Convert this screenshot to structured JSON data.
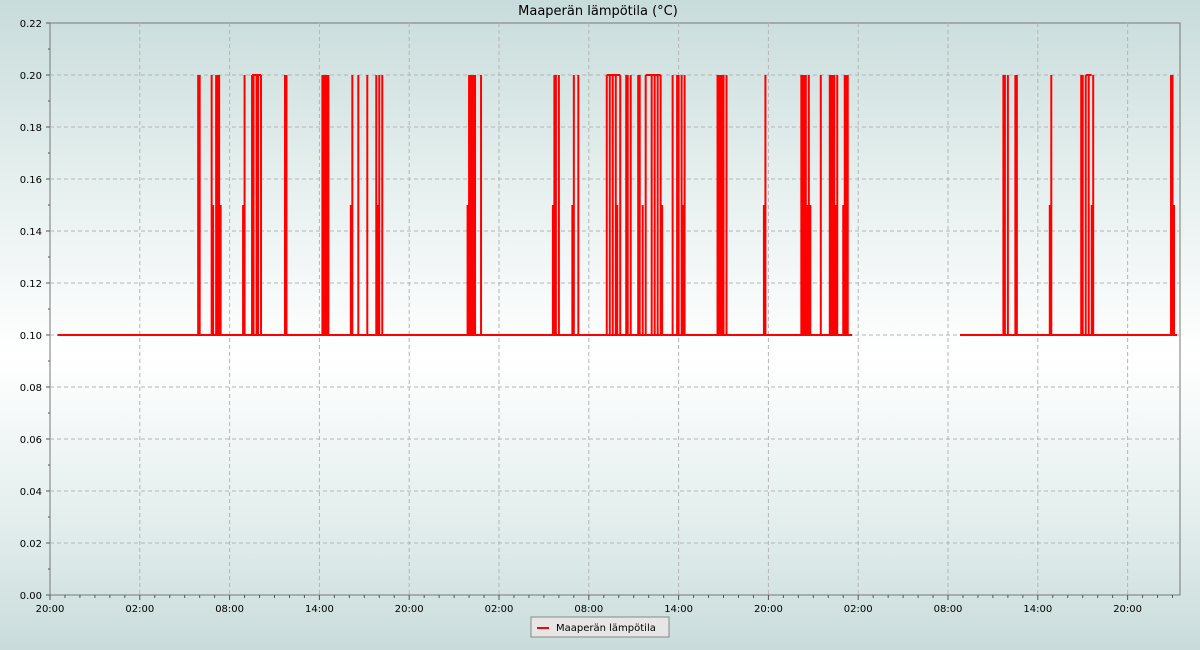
{
  "chart_data": {
    "type": "line",
    "title": "Maaperän lämpötila (°C)",
    "xlabel": "",
    "ylabel": "",
    "y_ticks": [
      "0.00",
      "0.02",
      "0.04",
      "0.06",
      "0.08",
      "0.10",
      "0.12",
      "0.14",
      "0.16",
      "0.18",
      "0.20",
      "0.22"
    ],
    "ylim": [
      0,
      0.22
    ],
    "x_ticks": [
      "20:00",
      "02:00",
      "08:00",
      "14:00",
      "20:00",
      "02:00",
      "08:00",
      "14:00",
      "20:00",
      "02:00",
      "08:00",
      "14:00",
      "20:00"
    ],
    "x_unit": "hours",
    "xlim": [
      0,
      75.5
    ],
    "grid": true,
    "legend_position": "bottom-center",
    "series": [
      {
        "name": "Maaperän lämpötila",
        "color": "#ff0000",
        "baseline": 0.1,
        "segments": [
          [
            0.5,
            53.6
          ],
          [
            60.8,
            75.3
          ]
        ],
        "spikes": [
          [
            9.9,
            0.2
          ],
          [
            10.0,
            0.2
          ],
          [
            10.8,
            0.2
          ],
          [
            10.9,
            0.15
          ],
          [
            11.1,
            0.2
          ],
          [
            11.2,
            0.2
          ],
          [
            11.3,
            0.2
          ],
          [
            11.4,
            0.15
          ],
          [
            12.9,
            0.15
          ],
          [
            13.0,
            0.2
          ],
          [
            13.5,
            0.2
          ],
          [
            13.6,
            0.2
          ],
          [
            13.8,
            0.2
          ],
          [
            13.9,
            0.2
          ],
          [
            14.1,
            0.2
          ],
          [
            15.7,
            0.2
          ],
          [
            15.8,
            0.2
          ],
          [
            18.2,
            0.2
          ],
          [
            18.3,
            0.2
          ],
          [
            18.4,
            0.2
          ],
          [
            18.5,
            0.2
          ],
          [
            18.6,
            0.2
          ],
          [
            20.1,
            0.15
          ],
          [
            20.2,
            0.2
          ],
          [
            20.6,
            0.2
          ],
          [
            21.2,
            0.2
          ],
          [
            21.8,
            0.2
          ],
          [
            21.9,
            0.15
          ],
          [
            22.0,
            0.2
          ],
          [
            22.2,
            0.2
          ],
          [
            27.9,
            0.15
          ],
          [
            28.0,
            0.2
          ],
          [
            28.1,
            0.2
          ],
          [
            28.2,
            0.2
          ],
          [
            28.3,
            0.2
          ],
          [
            28.4,
            0.2
          ],
          [
            28.8,
            0.2
          ],
          [
            33.6,
            0.15
          ],
          [
            33.7,
            0.2
          ],
          [
            33.8,
            0.2
          ],
          [
            34.0,
            0.2
          ],
          [
            34.9,
            0.15
          ],
          [
            35.0,
            0.2
          ],
          [
            35.3,
            0.2
          ],
          [
            37.2,
            0.2
          ],
          [
            37.4,
            0.2
          ],
          [
            37.6,
            0.2
          ],
          [
            37.8,
            0.2
          ],
          [
            37.9,
            0.15
          ],
          [
            38.1,
            0.2
          ],
          [
            38.5,
            0.2
          ],
          [
            38.6,
            0.2
          ],
          [
            38.8,
            0.2
          ],
          [
            39.3,
            0.2
          ],
          [
            39.4,
            0.2
          ],
          [
            39.6,
            0.15
          ],
          [
            39.8,
            0.2
          ],
          [
            40.2,
            0.2
          ],
          [
            40.4,
            0.2
          ],
          [
            40.6,
            0.2
          ],
          [
            40.8,
            0.2
          ],
          [
            40.9,
            0.15
          ],
          [
            41.6,
            0.2
          ],
          [
            41.9,
            0.2
          ],
          [
            42.0,
            0.2
          ],
          [
            42.2,
            0.2
          ],
          [
            42.3,
            0.15
          ],
          [
            42.4,
            0.2
          ],
          [
            44.6,
            0.2
          ],
          [
            44.7,
            0.2
          ],
          [
            44.8,
            0.2
          ],
          [
            44.9,
            0.2
          ],
          [
            45.0,
            0.2
          ],
          [
            45.2,
            0.2
          ],
          [
            47.7,
            0.15
          ],
          [
            47.8,
            0.2
          ],
          [
            50.2,
            0.2
          ],
          [
            50.3,
            0.2
          ],
          [
            50.4,
            0.2
          ],
          [
            50.5,
            0.2
          ],
          [
            50.6,
            0.15
          ],
          [
            50.7,
            0.2
          ],
          [
            50.8,
            0.15
          ],
          [
            51.5,
            0.2
          ],
          [
            52.1,
            0.2
          ],
          [
            52.2,
            0.2
          ],
          [
            52.3,
            0.2
          ],
          [
            52.4,
            0.2
          ],
          [
            52.5,
            0.15
          ],
          [
            52.6,
            0.2
          ],
          [
            53.0,
            0.15
          ],
          [
            53.1,
            0.2
          ],
          [
            53.2,
            0.2
          ],
          [
            53.3,
            0.2
          ],
          [
            63.7,
            0.2
          ],
          [
            63.8,
            0.2
          ],
          [
            64.0,
            0.2
          ],
          [
            64.5,
            0.2
          ],
          [
            64.6,
            0.2
          ],
          [
            66.8,
            0.15
          ],
          [
            66.9,
            0.2
          ],
          [
            68.9,
            0.2
          ],
          [
            69.0,
            0.2
          ],
          [
            69.2,
            0.2
          ],
          [
            69.4,
            0.2
          ],
          [
            69.6,
            0.15
          ],
          [
            69.7,
            0.2
          ],
          [
            74.9,
            0.2
          ],
          [
            75.0,
            0.2
          ],
          [
            75.1,
            0.15
          ]
        ],
        "plateaus": [
          [
            13.5,
            14.1
          ],
          [
            37.2,
            38.1
          ],
          [
            39.8,
            40.8
          ],
          [
            69.2,
            69.6
          ]
        ]
      }
    ]
  }
}
